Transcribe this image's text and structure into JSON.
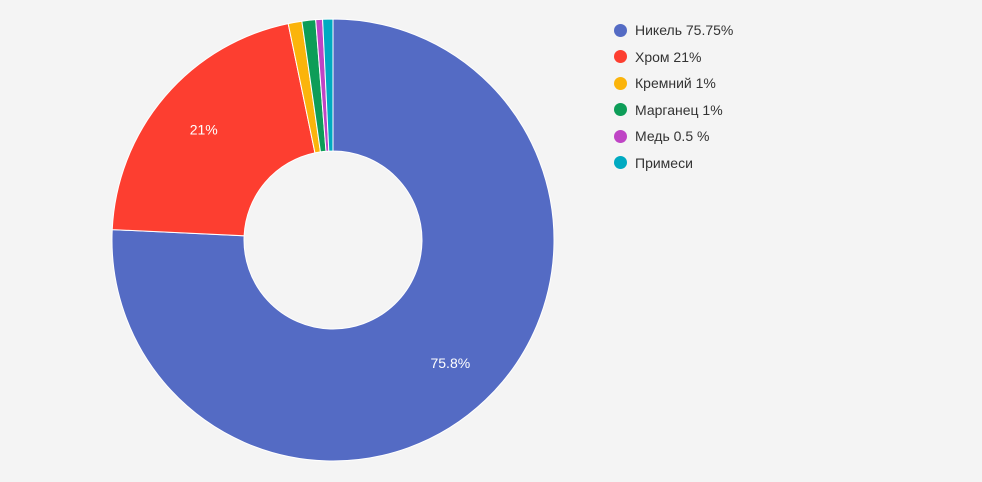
{
  "chart_data": {
    "type": "pie",
    "donut": true,
    "slices": [
      {
        "name": "Никель 75.75%",
        "value": 75.75,
        "color": "#546bc4",
        "label": "75.8%"
      },
      {
        "name": "Хром 21%",
        "value": 21,
        "color": "#fd3e30",
        "label": "21%"
      },
      {
        "name": "Кремний 1%",
        "value": 1,
        "color": "#fbb40b",
        "label": ""
      },
      {
        "name": "Марганец 1%",
        "value": 1,
        "color": "#0d9d58",
        "label": ""
      },
      {
        "name": "Медь 0.5 %",
        "value": 0.5,
        "color": "#bf44c5",
        "label": ""
      },
      {
        "name": "Примеси",
        "value": 0.75,
        "color": "#00aac1",
        "label": ""
      }
    ],
    "legend_position": "right"
  },
  "colors": {
    "background": "#f4f4f4",
    "slice_border": "#ffffff",
    "label_text": "#ffffff",
    "legend_text": "#333333"
  }
}
